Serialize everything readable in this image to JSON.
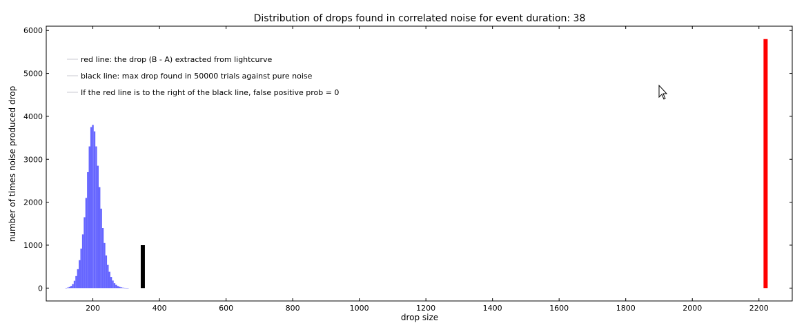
{
  "chart_data": {
    "type": "bar",
    "title": "Distribution of drops found in correlated noise for event duration: 38",
    "xlabel": "drop size",
    "ylabel": "number of times noise produced drop",
    "xlim": [
      60,
      2300
    ],
    "ylim": [
      -300,
      6100
    ],
    "x_ticks": [
      200,
      400,
      600,
      800,
      1000,
      1200,
      1400,
      1600,
      1800,
      2000,
      2200
    ],
    "y_ticks": [
      0,
      1000,
      2000,
      3000,
      4000,
      5000,
      6000
    ],
    "grid": false,
    "legend_position": "top-left",
    "legend": [
      "red line: the drop (B - A) extracted from lightcurve",
      "black line: max drop found in 50000 trials against pure noise",
      "If the red line is to the right of the black line, false positive prob = 0"
    ],
    "histogram": {
      "color": "#6666ff",
      "bin_width": 5,
      "bins": [
        [
          120,
          5
        ],
        [
          125,
          12
        ],
        [
          130,
          25
        ],
        [
          135,
          50
        ],
        [
          140,
          95
        ],
        [
          145,
          170
        ],
        [
          150,
          280
        ],
        [
          155,
          440
        ],
        [
          160,
          650
        ],
        [
          165,
          920
        ],
        [
          170,
          1250
        ],
        [
          175,
          1650
        ],
        [
          180,
          2100
        ],
        [
          185,
          2700
        ],
        [
          190,
          3300
        ],
        [
          195,
          3750
        ],
        [
          200,
          3800
        ],
        [
          205,
          3650
        ],
        [
          210,
          3300
        ],
        [
          215,
          2850
        ],
        [
          220,
          2350
        ],
        [
          225,
          1850
        ],
        [
          230,
          1400
        ],
        [
          235,
          1050
        ],
        [
          240,
          760
        ],
        [
          245,
          540
        ],
        [
          250,
          380
        ],
        [
          255,
          260
        ],
        [
          260,
          175
        ],
        [
          265,
          115
        ],
        [
          270,
          75
        ],
        [
          275,
          48
        ],
        [
          280,
          30
        ],
        [
          285,
          18
        ],
        [
          290,
          10
        ],
        [
          295,
          6
        ],
        [
          300,
          3
        ],
        [
          305,
          2
        ]
      ]
    },
    "lines": [
      {
        "name": "black",
        "color": "#000000",
        "x": 350,
        "y0": 0,
        "y1": 1000
      },
      {
        "name": "red",
        "color": "#ff0000",
        "x": 2220,
        "y0": 0,
        "y1": 5800
      }
    ]
  }
}
